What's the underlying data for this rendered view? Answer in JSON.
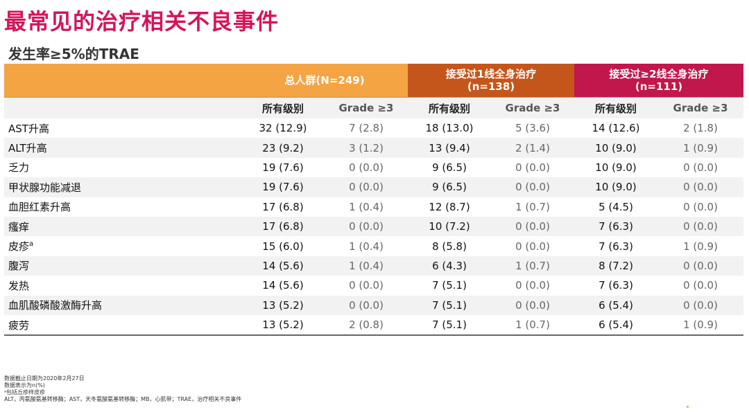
{
  "title": "最常见的治疗相关不良事件",
  "subtitle": "发生率≥5%的TRAE",
  "colors": {
    "title": "#d4145a",
    "group1": "#f5a443",
    "group2": "#c5561b",
    "group3": "#c2174c"
  },
  "table": {
    "groups": [
      {
        "label": "总人群(N=249)"
      },
      {
        "label": "接受过1线全身治疗",
        "n": "(n=138)"
      },
      {
        "label": "接受过≥2线全身治疗",
        "n": "(n=111)"
      }
    ],
    "subheaders": [
      "所有级别",
      "Grade ≥3",
      "所有级别",
      "Grade ≥3",
      "所有级别",
      "Grade ≥3"
    ],
    "rows": [
      {
        "term": "AST升高",
        "sup": "",
        "values": [
          "32 (12.9)",
          "7 (2.8)",
          "18 (13.0)",
          "5 (3.6)",
          "14 (12.6)",
          "2 (1.8)"
        ]
      },
      {
        "term": "ALT升高",
        "sup": "",
        "values": [
          "23 (9.2)",
          "3 (1.2)",
          "13 (9.4)",
          "2 (1.4)",
          "10 (9.0)",
          "1 (0.9)"
        ]
      },
      {
        "term": "乏力",
        "sup": "",
        "values": [
          "19 (7.6)",
          "0 (0.0)",
          "9 (6.5)",
          "0 (0.0)",
          "10 (9.0)",
          "0 (0.0)"
        ]
      },
      {
        "term": "甲状腺功能减退",
        "sup": "",
        "values": [
          "19 (7.6)",
          "0 (0.0)",
          "9 (6.5)",
          "0 (0.0)",
          "10 (9.0)",
          "0 (0.0)"
        ]
      },
      {
        "term": "血胆红素升高",
        "sup": "",
        "values": [
          "17 (6.8)",
          "1 (0.4)",
          "12 (8.7)",
          "1 (0.7)",
          "5 (4.5)",
          "0 (0.0)"
        ]
      },
      {
        "term": "瘙痒",
        "sup": "",
        "values": [
          "17 (6.8)",
          "0 (0.0)",
          "10 (7.2)",
          "0 (0.0)",
          "7 (6.3)",
          "0 (0.0)"
        ]
      },
      {
        "term": "皮疹",
        "sup": "a",
        "values": [
          "15 (6.0)",
          "1 (0.4)",
          "8 (5.8)",
          "0 (0.0)",
          "7 (6.3)",
          "1 (0.9)"
        ]
      },
      {
        "term": "腹泻",
        "sup": "",
        "values": [
          "14 (5.6)",
          "1 (0.4)",
          "6 (4.3)",
          "1 (0.7)",
          "8 (7.2)",
          "0 (0.0)"
        ]
      },
      {
        "term": "发热",
        "sup": "",
        "values": [
          "14 (5.6)",
          "0 (0.0)",
          "7 (5.1)",
          "0 (0.0)",
          "7 (6.3)",
          "0 (0.0)"
        ]
      },
      {
        "term": "血肌酸磷酸激酶升高",
        "sup": "",
        "values": [
          "13 (5.2)",
          "0 (0.0)",
          "7 (5.1)",
          "0 (0.0)",
          "6 (5.4)",
          "0 (0.0)"
        ]
      },
      {
        "term": "疲劳",
        "sup": "",
        "values": [
          "13 (5.2)",
          "2 (0.8)",
          "7 (5.1)",
          "1 (0.7)",
          "6 (5.4)",
          "1 (0.9)"
        ]
      }
    ]
  },
  "footnotes": [
    "数据截止日期为2020年2月27日",
    "数据表示为n(%)",
    "ᵃ包括丘疹样皮疹",
    "ALT，丙氨酸氨基转移酶；AST，天冬氨酸氨基转移酶；MB，心肌带；TRAE，治疗相关不良事件"
  ]
}
